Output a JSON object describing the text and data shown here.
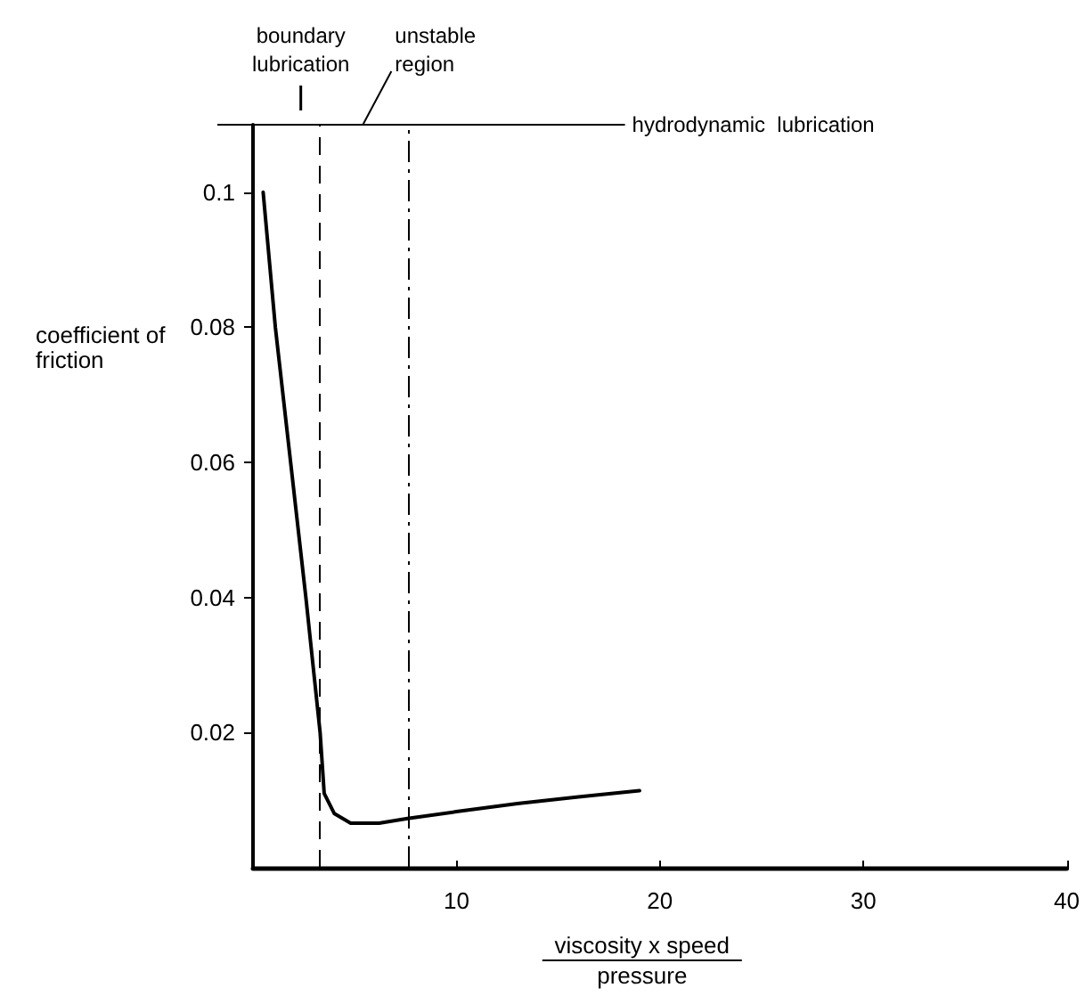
{
  "chart_data": {
    "type": "line",
    "xlabel": "viscosity x speed\npressure",
    "ylabel": "coefficient of\nfriction",
    "annotations": [
      "boundary\nlubrication",
      "unstable\nregion",
      "hydrodynamic  lubrication"
    ],
    "series": [
      {
        "color": "#000000",
        "x": [
          0.5,
          1.1,
          1.85,
          2.6,
          3.3,
          3.5,
          4.0,
          4.8,
          6.2,
          7.6,
          10,
          13,
          16,
          19
        ],
        "values": [
          0.1,
          0.08,
          0.06,
          0.04,
          0.02,
          0.011,
          0.008,
          0.0066,
          0.0066,
          0.0073,
          0.0083,
          0.0095,
          0.0105,
          0.0114
        ]
      }
    ],
    "xlim": [
      0,
      40
    ],
    "xticks": [
      10,
      20,
      30,
      40
    ],
    "ylim": [
      0,
      0.11
    ],
    "yticks": [
      0.02,
      0.04,
      0.06,
      0.08,
      0.1
    ],
    "ref_lines": [
      {
        "axis": "x",
        "value": 3.3,
        "line_style": "dashed"
      },
      {
        "axis": "x",
        "value": 7.6,
        "line_style": "dotted"
      }
    ],
    "grid": false,
    "marker": "none",
    "line_style": "solid"
  }
}
